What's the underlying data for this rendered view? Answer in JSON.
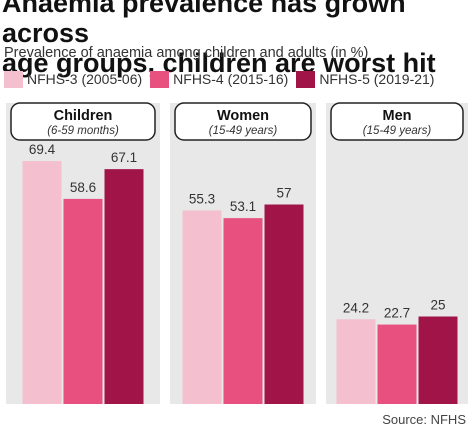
{
  "title_lines": [
    "Anaemia prevalence has grown across",
    "age groups, children are worst hit"
  ],
  "subtitle": "Prevalence of anaemia among children and adults (in %)",
  "source": "Source: NFHS",
  "colors": {
    "background": "#ffffff",
    "panel": "#e8e8e8",
    "header_fill": "#ffffff",
    "header_stroke": "#222222",
    "NFHS-3": "#f4bfcf",
    "NFHS-4": "#e8507f",
    "NFHS-5": "#a01448"
  },
  "chart_data": {
    "type": "bar",
    "title": "Anaemia prevalence has grown across age groups, children are worst hit",
    "subtitle": "Prevalence of anaemia among children and adults (in %)",
    "xlabel": "",
    "ylabel": "",
    "ylim": [
      0,
      75
    ],
    "grid": false,
    "legend_position": "top",
    "groups": [
      {
        "name": "Children",
        "subtitle": "(6-59 months)"
      },
      {
        "name": "Women",
        "subtitle": "(15-49 years)"
      },
      {
        "name": "Men",
        "subtitle": "(15-49 years)"
      }
    ],
    "series": [
      {
        "name": "NFHS-3 (2005-06)",
        "values": [
          69.4,
          55.3,
          24.2
        ]
      },
      {
        "name": "NFHS-4 (2015-16)",
        "values": [
          58.6,
          53.1,
          22.7
        ]
      },
      {
        "name": "NFHS-5 (2019-21)",
        "values": [
          67.1,
          57,
          25
        ]
      }
    ]
  }
}
